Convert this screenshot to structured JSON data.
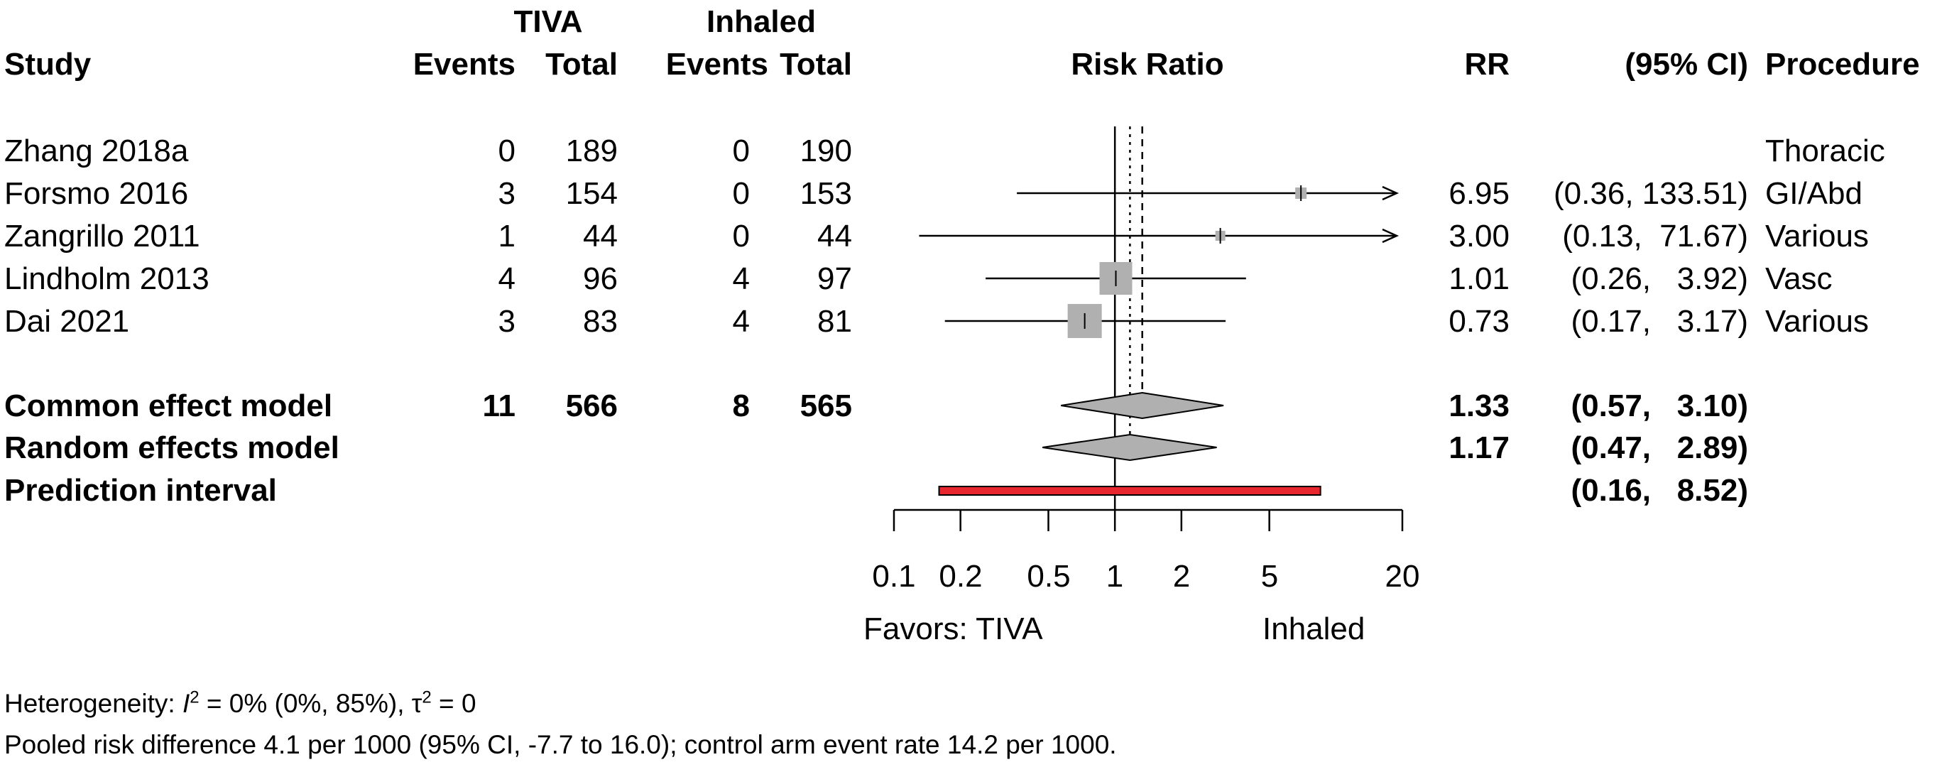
{
  "header": {
    "group_tiva": "TIVA",
    "group_inhaled": "Inhaled",
    "study": "Study",
    "events": "Events",
    "total": "Total",
    "risk_ratio": "Risk Ratio",
    "rr": "RR",
    "ci": "(95% CI)",
    "procedure": "Procedure"
  },
  "studies": [
    {
      "name": "Zhang 2018a",
      "tiva_events": "0",
      "tiva_total": "189",
      "inh_events": "0",
      "inh_total": "190",
      "rr": "",
      "ci": "",
      "procedure": "Thoracic"
    },
    {
      "name": "Forsmo 2016",
      "tiva_events": "3",
      "tiva_total": "154",
      "inh_events": "0",
      "inh_total": "153",
      "rr": "6.95",
      "ci": "(0.36, 133.51)",
      "procedure": "GI/Abd"
    },
    {
      "name": "Zangrillo 2011",
      "tiva_events": "1",
      "tiva_total": "44",
      "inh_events": "0",
      "inh_total": "44",
      "rr": "3.00",
      "ci": "(0.13,  71.67)",
      "procedure": "Various"
    },
    {
      "name": "Lindholm 2013",
      "tiva_events": "4",
      "tiva_total": "96",
      "inh_events": "4",
      "inh_total": "97",
      "rr": "1.01",
      "ci": "(0.26,   3.92)",
      "procedure": "Vasc"
    },
    {
      "name": "Dai 2021",
      "tiva_events": "3",
      "tiva_total": "83",
      "inh_events": "4",
      "inh_total": "81",
      "rr": "0.73",
      "ci": "(0.17,   3.17)",
      "procedure": "Various"
    }
  ],
  "summaries": [
    {
      "name": "Common effect model",
      "tiva_events": "11",
      "tiva_total": "566",
      "inh_events": "8",
      "inh_total": "565",
      "rr": "1.33",
      "ci": "(0.57,   3.10)"
    },
    {
      "name": "Random effects model",
      "tiva_events": "",
      "tiva_total": "",
      "inh_events": "",
      "inh_total": "",
      "rr": "1.17",
      "ci": "(0.47,   2.89)"
    },
    {
      "name": "Prediction interval",
      "tiva_events": "",
      "tiva_total": "",
      "inh_events": "",
      "inh_total": "",
      "rr": "",
      "ci": "(0.16,   8.52)"
    }
  ],
  "axis": {
    "ticks": [
      "0.1",
      "0.2",
      "0.5",
      "1",
      "2",
      "5",
      "20"
    ],
    "label_left": "Favors: TIVA",
    "label_right": "Inhaled"
  },
  "footnote": {
    "het_prefix": "Heterogeneity: ",
    "het_i": "I",
    "het_i_sup": "2",
    "het_mid": " = 0% (0%, 85%), τ",
    "het_tau_sup": "2",
    "het_end": " = 0",
    "line2": "Pooled risk difference 4.1 per 1000 (95% CI, -7.7 to 16.0); control arm event rate 14.2 per 1000."
  },
  "colors": {
    "square": "#b0b0b0",
    "diamond": "#b0b0b0",
    "prediction": "#e8262e",
    "line": "#000000"
  },
  "chart_data": {
    "type": "forest",
    "scale": "log",
    "xlim": [
      0.1,
      20
    ],
    "xticks": [
      0.1,
      0.2,
      0.5,
      1,
      2,
      5,
      20
    ],
    "null_line": 1,
    "xlabel_left": "Favors: TIVA",
    "xlabel_right": "Inhaled",
    "studies": [
      {
        "name": "Zhang 2018a",
        "rr": null,
        "lower": null,
        "upper": null
      },
      {
        "name": "Forsmo 2016",
        "rr": 6.95,
        "lower": 0.36,
        "upper": 133.51,
        "arrow_right": true
      },
      {
        "name": "Zangrillo 2011",
        "rr": 3.0,
        "lower": 0.13,
        "upper": 71.67,
        "arrow_right": true
      },
      {
        "name": "Lindholm 2013",
        "rr": 1.01,
        "lower": 0.26,
        "upper": 3.92
      },
      {
        "name": "Dai 2021",
        "rr": 0.73,
        "lower": 0.17,
        "upper": 3.17
      }
    ],
    "common_effect": {
      "rr": 1.33,
      "lower": 0.57,
      "upper": 3.1
    },
    "random_effects": {
      "rr": 1.17,
      "lower": 0.47,
      "upper": 2.89
    },
    "prediction_interval": {
      "lower": 0.16,
      "upper": 8.52
    }
  }
}
